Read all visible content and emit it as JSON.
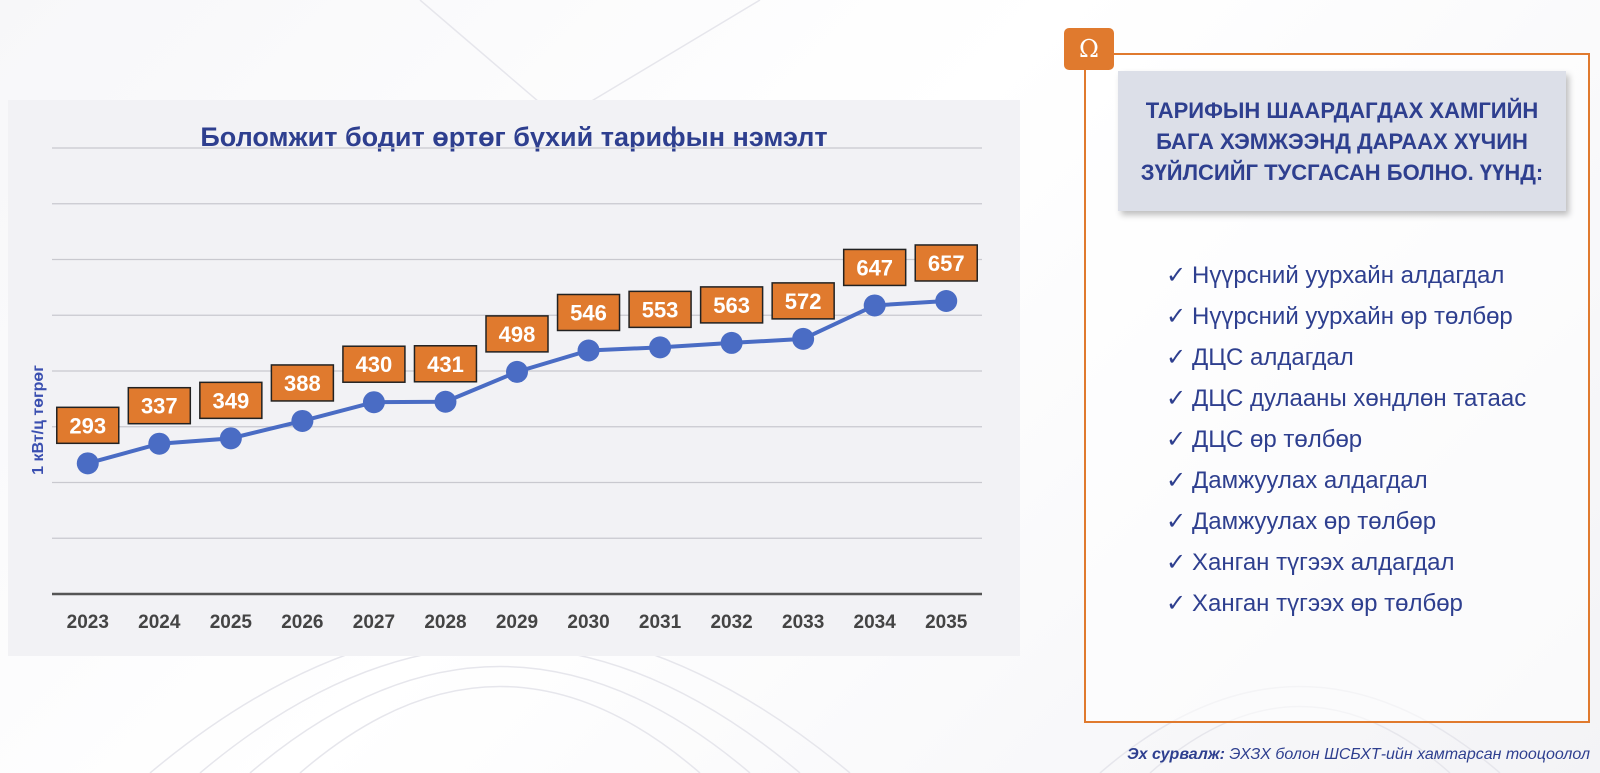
{
  "chart_data": {
    "type": "line",
    "title": "Боломжит бодит өртөг бүхий тарифын нэмэлт",
    "ylabel": "1 кВт/ц төгрөг",
    "xlabel": "",
    "categories": [
      "2023",
      "2024",
      "2025",
      "2026",
      "2027",
      "2028",
      "2029",
      "2030",
      "2031",
      "2032",
      "2033",
      "2034",
      "2035"
    ],
    "values": [
      293,
      337,
      349,
      388,
      430,
      431,
      498,
      546,
      553,
      563,
      572,
      647,
      657
    ],
    "ylim": [
      0,
      1000
    ],
    "grid": true,
    "line_color": "#4a6cc4",
    "label_color": "#e07a2e"
  },
  "info": {
    "icon": "omega-icon",
    "icon_glyph": "Ω",
    "header": "ТАРИФЫН ШААРДАГДАХ ХАМГИЙН БАГА ХЭМЖЭЭНД ДАРААХ ХҮЧИН ЗҮЙЛСИЙГ ТУСГАСАН БОЛНО. ҮҮНД:",
    "items": [
      "Нүүрсний уурхайн алдагдал",
      "Нүүрсний уурхайн өр төлбөр",
      "ДЦС алдагдал",
      "ДЦС дулааны хөндлөн татаас",
      "ДЦС өр төлбөр",
      "Дамжуулах алдагдал",
      "Дамжуулах өр төлбөр",
      "Ханган түгээх алдагдал",
      "Ханган түгээх өр төлбөр"
    ]
  },
  "source": {
    "label": "Эх сурвалж:",
    "text": "ЭХЗХ болон ШСБХТ-ийн хамтарсан тооцоолол"
  }
}
